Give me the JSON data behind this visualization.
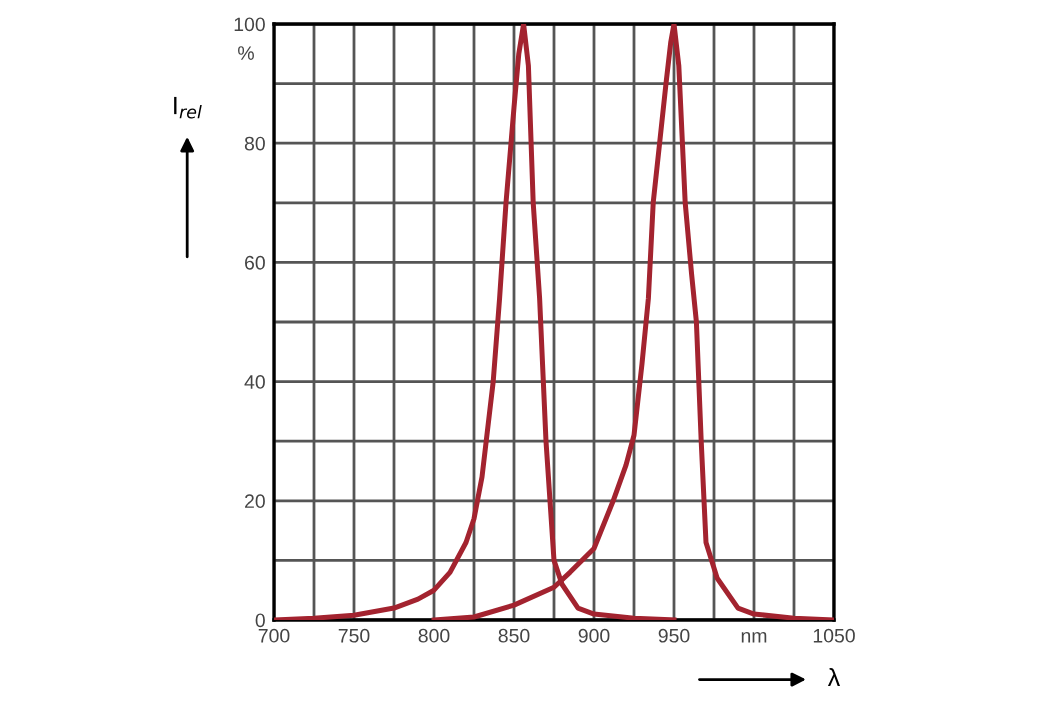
{
  "chart_data": {
    "type": "line",
    "ylabel": "I$_{rel}$",
    "xlabel": "λ",
    "annotations": [
      "%"
    ],
    "series": [
      {
        "color": "#a3232f",
        "x": [
          700,
          725,
          750,
          775,
          790,
          800,
          810,
          820,
          825,
          830,
          837,
          841,
          845,
          850,
          853,
          856,
          859,
          862,
          866,
          870,
          875,
          880,
          890,
          900,
          925,
          950
        ],
        "values": [
          0,
          0.3,
          0.8,
          2,
          3.5,
          5,
          8,
          13,
          17,
          24,
          40,
          54,
          70,
          86,
          95,
          100,
          93,
          70,
          54,
          30,
          10,
          6,
          2,
          1,
          0.3,
          0
        ]
      },
      {
        "color": "#a3232f",
        "x": [
          800,
          825,
          850,
          875,
          885,
          900,
          912,
          920,
          925,
          930,
          934,
          937,
          941,
          945,
          948,
          950,
          953,
          957,
          961,
          964,
          967,
          970,
          977,
          990,
          1000,
          1025,
          1050
        ],
        "values": [
          0,
          0.5,
          2.5,
          5.5,
          8,
          12,
          20,
          26,
          31,
          43,
          54,
          70,
          80,
          90,
          97,
          100,
          93,
          70,
          58,
          50,
          30,
          13,
          7,
          2,
          1,
          0.3,
          0
        ]
      }
    ],
    "xlim": [
      700,
      1050
    ],
    "ylim": [
      0,
      100
    ],
    "xticks": [
      700,
      {
        "value": 725,
        "label": null
      },
      750,
      {
        "value": 775,
        "label": null
      },
      800,
      {
        "value": 825,
        "label": null
      },
      850,
      {
        "value": 875,
        "label": null
      },
      900,
      {
        "value": 925,
        "label": null
      },
      950,
      {
        "value": 975,
        "label": null
      },
      {
        "value": 1000,
        "label": "nm"
      },
      {
        "value": 1025,
        "label": null
      },
      1050
    ],
    "yticks": [
      0,
      {
        "value": 10,
        "label": null
      },
      20,
      {
        "value": 30,
        "label": null
      },
      40,
      {
        "value": 50,
        "label": null
      },
      60,
      {
        "value": 70,
        "label": null
      },
      80,
      {
        "value": 90,
        "label": null
      },
      100
    ],
    "grid": true,
    "legend": false,
    "marker": "none",
    "line_style": "solid"
  }
}
